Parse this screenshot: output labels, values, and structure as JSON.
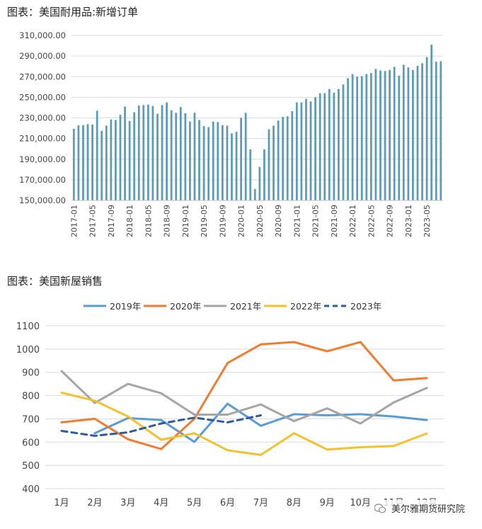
{
  "chart_data": [
    {
      "type": "bar",
      "title": "图表：美国耐用品:新增订单",
      "ylim": [
        150000,
        310000
      ],
      "yticks": [
        "150,000.00",
        "170,000.00",
        "190,000.00",
        "210,000.00",
        "230,000.00",
        "250,000.00",
        "270,000.00",
        "290,000.00",
        "310,000.00"
      ],
      "xticks": [
        "2017-01",
        "2017-05",
        "2017-09",
        "2018-01",
        "2018-05",
        "2018-09",
        "2019-01",
        "2019-05",
        "2019-09",
        "2020-01",
        "2020-05",
        "2020-09",
        "2021-01",
        "2021-05",
        "2021-09",
        "2022-01",
        "2022-05",
        "2022-09",
        "2023-01",
        "2023-05"
      ],
      "color": "#5B9BB5",
      "start": "2017-01",
      "values": [
        219500,
        222800,
        223000,
        224000,
        223500,
        237000,
        217500,
        222500,
        228500,
        228000,
        233000,
        241000,
        227000,
        235500,
        242000,
        242500,
        243000,
        241500,
        234000,
        242500,
        245000,
        237500,
        235000,
        240500,
        234500,
        226500,
        235000,
        228000,
        222000,
        221000,
        226500,
        226000,
        223000,
        222500,
        215000,
        216500,
        230000,
        235000,
        199500,
        161000,
        182500,
        199500,
        219000,
        222500,
        227500,
        231000,
        231500,
        236500,
        245000,
        245000,
        248500,
        246000,
        250000,
        254000,
        254000,
        258000,
        254500,
        258000,
        262500,
        268500,
        272500,
        270000,
        270500,
        272500,
        273500,
        277500,
        276000,
        275500,
        276500,
        279500,
        271000,
        281500,
        279000,
        276500,
        280500,
        283000,
        289000,
        301000,
        284500,
        285000
      ]
    },
    {
      "type": "line",
      "title": "图表：美国新屋销售",
      "categories": [
        "1月",
        "2月",
        "3月",
        "4月",
        "5月",
        "6月",
        "7月",
        "8月",
        "9月",
        "10月",
        "11月",
        "12月"
      ],
      "ylim": [
        400,
        1100
      ],
      "yticks": [
        "400",
        "500",
        "600",
        "700",
        "800",
        "900",
        "1000",
        "1100"
      ],
      "series": [
        {
          "name": "2019年",
          "color": "#5B9BD5",
          "dash": false,
          "values": [
            null,
            638,
            703,
            695,
            601,
            765,
            670,
            720,
            715,
            720,
            710,
            695
          ]
        },
        {
          "name": "2020年",
          "color": "#ED7D31",
          "dash": false,
          "values": [
            685,
            700,
            612,
            570,
            700,
            940,
            1020,
            1030,
            990,
            1030,
            865,
            875
          ]
        },
        {
          "name": "2021年",
          "color": "#A5A5A5",
          "dash": false,
          "values": [
            905,
            768,
            850,
            810,
            718,
            718,
            762,
            690,
            745,
            680,
            770,
            833
          ]
        },
        {
          "name": "2022年",
          "color": "#F2C12E",
          "dash": false,
          "values": [
            812,
            778,
            710,
            610,
            638,
            565,
            545,
            638,
            568,
            578,
            583,
            637
          ]
        },
        {
          "name": "2023年",
          "color": "#2E5C9A",
          "dash": true,
          "values": [
            648,
            627,
            642,
            680,
            705,
            685,
            715,
            null,
            null,
            null,
            null,
            null
          ]
        }
      ]
    }
  ],
  "watermark": {
    "text": "美尔雅期货研究院",
    "icon": "wechat-icon"
  }
}
